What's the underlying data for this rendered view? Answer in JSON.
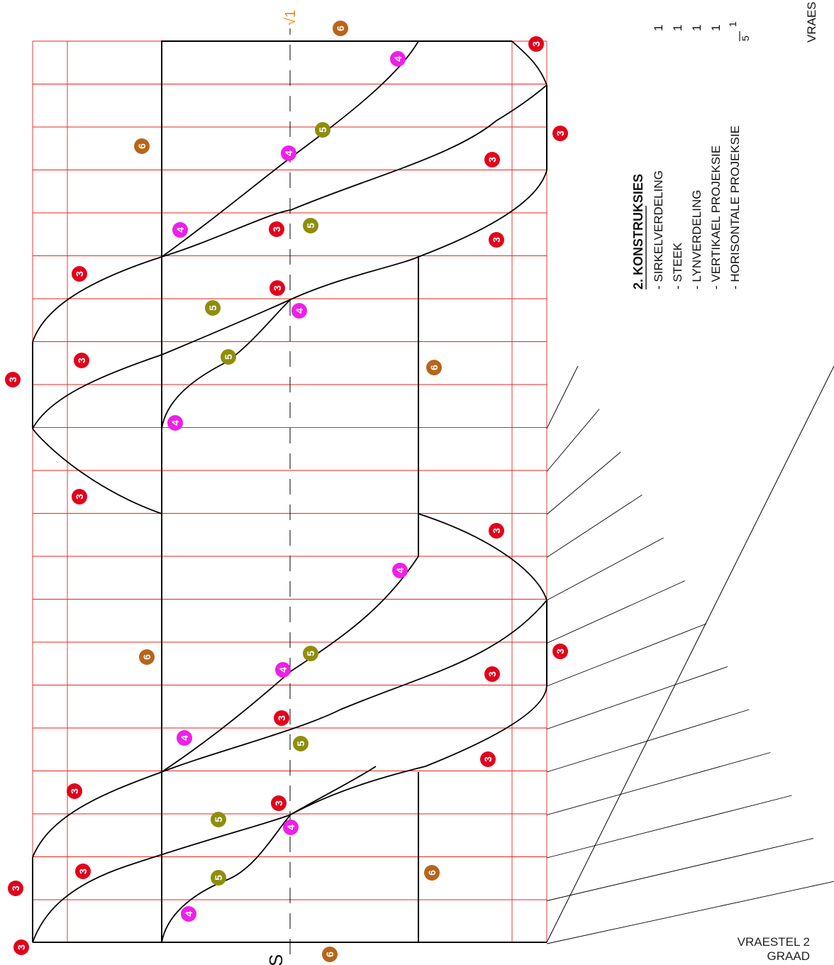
{
  "drawing": {
    "axis_start_label": "S",
    "axis_end_label": "√1",
    "colors": {
      "grid": "#e8251f",
      "outline": "#000000",
      "marker_3": "#e3001b",
      "marker_4": "#ee1fe8",
      "marker_5": "#8e8e0d",
      "marker_6": "#b8641b",
      "axis_label_orange": "#f08a1a"
    }
  },
  "legend": {
    "heading": "2.  KONSTRUKSIES",
    "items": [
      {
        "label": "- SIRKELVERDELING",
        "mark": "1"
      },
      {
        "label": "- STEEK",
        "mark": "1"
      },
      {
        "label": "- LYNVERDELING",
        "mark": "1"
      },
      {
        "label": "- VERTIKAEL PROJEKSIE",
        "mark": "1"
      },
      {
        "label": "- HORISONTALE PROJEKSIE",
        "mark_num": "1",
        "mark_den": "5"
      }
    ]
  },
  "top_right_label": "VRAES",
  "footer": {
    "line1": "VRAESTEL 2",
    "line2": "GRAAD"
  },
  "markers": {
    "m3": "3",
    "m4": "4",
    "m5": "5",
    "m6": "6"
  }
}
